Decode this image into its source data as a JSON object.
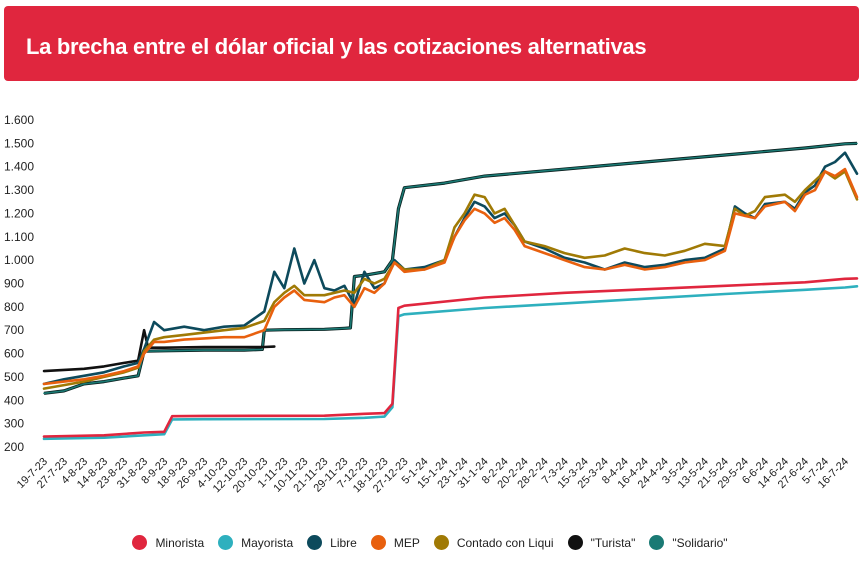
{
  "header": {
    "title": "La brecha entre el dólar oficial y las cotizaciones alternativas"
  },
  "chart_data": {
    "type": "line",
    "title": "La brecha entre el dólar oficial y las cotizaciones alternativas",
    "y_ticks": [
      "200",
      "300",
      "400",
      "500",
      "600",
      "700",
      "800",
      "900",
      "1.000",
      "1.100",
      "1.200",
      "1.300",
      "1.400",
      "1.500",
      "1.600"
    ],
    "ylim": [
      200,
      1600
    ],
    "x_ticks": [
      "19-7-23",
      "27-7-23",
      "4-8-23",
      "14-8-23",
      "23-8-23",
      "31-8-23",
      "8-9-23",
      "18-9-23",
      "26-9-23",
      "4-10-23",
      "12-10-23",
      "20-10-23",
      "1-11-23",
      "10-11-23",
      "21-11-23",
      "29-11-23",
      "7-12-23",
      "18-12-23",
      "27-12-23",
      "5-1-24",
      "15-1-24",
      "23-1-24",
      "31-1-24",
      "8-2-24",
      "20-2-24",
      "28-2-24",
      "7-3-24",
      "15-3-24",
      "25-3-24",
      "8-4-24",
      "16-4-24",
      "24-4-24",
      "3-5-24",
      "13-5-24",
      "21-5-24",
      "29-5-24",
      "6-6-24",
      "14-6-24",
      "27-6-24",
      "5-7-24",
      "16-7-24"
    ],
    "grid": false,
    "legend_position": "bottom",
    "series": [
      {
        "name": "Minorista",
        "color": "#e0263e",
        "points": [
          [
            0,
            245
          ],
          [
            3,
            250
          ],
          [
            5,
            262
          ],
          [
            6,
            265
          ],
          [
            6.4,
            332
          ],
          [
            8,
            333
          ],
          [
            14,
            334
          ],
          [
            16,
            342
          ],
          [
            17,
            345
          ],
          [
            17.4,
            385
          ],
          [
            17.7,
            795
          ],
          [
            18,
            805
          ],
          [
            22,
            840
          ],
          [
            26,
            860
          ],
          [
            30,
            875
          ],
          [
            34,
            890
          ],
          [
            38,
            905
          ],
          [
            40,
            920
          ],
          [
            40.6,
            922
          ]
        ]
      },
      {
        "name": "Mayorista",
        "color": "#2eb0be",
        "points": [
          [
            0,
            235
          ],
          [
            3,
            240
          ],
          [
            5,
            250
          ],
          [
            6,
            255
          ],
          [
            6.4,
            318
          ],
          [
            8,
            319
          ],
          [
            14,
            320
          ],
          [
            16,
            325
          ],
          [
            17,
            330
          ],
          [
            17.4,
            370
          ],
          [
            17.7,
            760
          ],
          [
            18,
            768
          ],
          [
            22,
            795
          ],
          [
            26,
            815
          ],
          [
            30,
            835
          ],
          [
            34,
            855
          ],
          [
            38,
            873
          ],
          [
            40,
            883
          ],
          [
            40.6,
            888
          ]
        ]
      },
      {
        "name": "Libre",
        "color": "#0d4a5c",
        "points": [
          [
            0,
            470
          ],
          [
            1,
            490
          ],
          [
            2,
            505
          ],
          [
            3,
            520
          ],
          [
            4,
            545
          ],
          [
            4.7,
            560
          ],
          [
            5,
            620
          ],
          [
            5.5,
            735
          ],
          [
            6,
            700
          ],
          [
            7,
            715
          ],
          [
            8,
            700
          ],
          [
            9,
            715
          ],
          [
            10,
            720
          ],
          [
            11,
            780
          ],
          [
            11.5,
            950
          ],
          [
            12,
            880
          ],
          [
            12.5,
            1050
          ],
          [
            13,
            900
          ],
          [
            13.5,
            1000
          ],
          [
            14,
            880
          ],
          [
            14.5,
            870
          ],
          [
            15,
            890
          ],
          [
            15.5,
            810
          ],
          [
            16,
            950
          ],
          [
            16.5,
            880
          ],
          [
            17,
            900
          ],
          [
            17.5,
            1000
          ],
          [
            18,
            960
          ],
          [
            19,
            970
          ],
          [
            20,
            1000
          ],
          [
            20.5,
            1100
          ],
          [
            21,
            1180
          ],
          [
            21.5,
            1250
          ],
          [
            22,
            1230
          ],
          [
            22.5,
            1180
          ],
          [
            23,
            1200
          ],
          [
            23.5,
            1150
          ],
          [
            24,
            1080
          ],
          [
            25,
            1050
          ],
          [
            26,
            1010
          ],
          [
            27,
            990
          ],
          [
            28,
            960
          ],
          [
            29,
            990
          ],
          [
            30,
            970
          ],
          [
            31,
            980
          ],
          [
            32,
            1000
          ],
          [
            33,
            1010
          ],
          [
            34,
            1050
          ],
          [
            34.5,
            1230
          ],
          [
            35,
            1200
          ],
          [
            35.5,
            1180
          ],
          [
            36,
            1240
          ],
          [
            37,
            1250
          ],
          [
            37.5,
            1220
          ],
          [
            38,
            1290
          ],
          [
            38.5,
            1320
          ],
          [
            39,
            1400
          ],
          [
            39.5,
            1420
          ],
          [
            40,
            1460
          ],
          [
            40.6,
            1370
          ]
        ]
      },
      {
        "name": "MEP",
        "color": "#e8600e",
        "points": [
          [
            0,
            470
          ],
          [
            1,
            480
          ],
          [
            2,
            490
          ],
          [
            3,
            505
          ],
          [
            4,
            525
          ],
          [
            4.7,
            545
          ],
          [
            5,
            600
          ],
          [
            5.5,
            650
          ],
          [
            6,
            650
          ],
          [
            7,
            660
          ],
          [
            8,
            665
          ],
          [
            9,
            670
          ],
          [
            10,
            670
          ],
          [
            11,
            700
          ],
          [
            11.5,
            800
          ],
          [
            12,
            840
          ],
          [
            12.5,
            870
          ],
          [
            13,
            830
          ],
          [
            14,
            820
          ],
          [
            14.5,
            840
          ],
          [
            15,
            850
          ],
          [
            15.5,
            800
          ],
          [
            16,
            880
          ],
          [
            16.5,
            860
          ],
          [
            17,
            900
          ],
          [
            17.5,
            990
          ],
          [
            18,
            950
          ],
          [
            19,
            960
          ],
          [
            20,
            990
          ],
          [
            20.5,
            1100
          ],
          [
            21,
            1170
          ],
          [
            21.5,
            1220
          ],
          [
            22,
            1200
          ],
          [
            22.5,
            1160
          ],
          [
            23,
            1180
          ],
          [
            23.5,
            1130
          ],
          [
            24,
            1060
          ],
          [
            25,
            1030
          ],
          [
            26,
            1000
          ],
          [
            27,
            970
          ],
          [
            28,
            960
          ],
          [
            29,
            980
          ],
          [
            30,
            960
          ],
          [
            31,
            970
          ],
          [
            32,
            990
          ],
          [
            33,
            1000
          ],
          [
            34,
            1040
          ],
          [
            34.5,
            1200
          ],
          [
            35,
            1190
          ],
          [
            35.5,
            1180
          ],
          [
            36,
            1230
          ],
          [
            37,
            1250
          ],
          [
            37.5,
            1210
          ],
          [
            38,
            1280
          ],
          [
            38.5,
            1300
          ],
          [
            39,
            1380
          ],
          [
            39.5,
            1360
          ],
          [
            40,
            1390
          ],
          [
            40.6,
            1270
          ]
        ]
      },
      {
        "name": "Contado con Liqui",
        "color": "#a07a05",
        "points": [
          [
            0,
            450
          ],
          [
            1,
            465
          ],
          [
            2,
            480
          ],
          [
            3,
            500
          ],
          [
            4,
            520
          ],
          [
            4.7,
            540
          ],
          [
            5,
            610
          ],
          [
            5.5,
            660
          ],
          [
            6,
            670
          ],
          [
            7,
            680
          ],
          [
            8,
            690
          ],
          [
            9,
            700
          ],
          [
            10,
            710
          ],
          [
            11,
            740
          ],
          [
            11.5,
            820
          ],
          [
            12,
            860
          ],
          [
            12.5,
            890
          ],
          [
            13,
            850
          ],
          [
            14,
            850
          ],
          [
            14.5,
            860
          ],
          [
            15,
            870
          ],
          [
            15.5,
            860
          ],
          [
            16,
            920
          ],
          [
            16.5,
            900
          ],
          [
            17,
            920
          ],
          [
            17.5,
            990
          ],
          [
            18,
            960
          ],
          [
            19,
            960
          ],
          [
            20,
            1000
          ],
          [
            20.5,
            1140
          ],
          [
            21,
            1200
          ],
          [
            21.5,
            1280
          ],
          [
            22,
            1270
          ],
          [
            22.5,
            1200
          ],
          [
            23,
            1220
          ],
          [
            23.5,
            1150
          ],
          [
            24,
            1080
          ],
          [
            25,
            1060
          ],
          [
            26,
            1030
          ],
          [
            27,
            1010
          ],
          [
            28,
            1020
          ],
          [
            29,
            1050
          ],
          [
            30,
            1030
          ],
          [
            31,
            1020
          ],
          [
            32,
            1040
          ],
          [
            33,
            1070
          ],
          [
            34,
            1060
          ],
          [
            34.5,
            1220
          ],
          [
            35,
            1190
          ],
          [
            35.5,
            1210
          ],
          [
            36,
            1270
          ],
          [
            37,
            1280
          ],
          [
            37.5,
            1250
          ],
          [
            38,
            1300
          ],
          [
            38.5,
            1340
          ],
          [
            39,
            1380
          ],
          [
            39.5,
            1350
          ],
          [
            40,
            1380
          ],
          [
            40.6,
            1260
          ]
        ]
      },
      {
        "name": "\"Turista\"",
        "color": "#111111",
        "points": [
          [
            0,
            525
          ],
          [
            2,
            535
          ],
          [
            3,
            545
          ],
          [
            4,
            560
          ],
          [
            4.7,
            570
          ],
          [
            5,
            700
          ],
          [
            5.2,
            625
          ],
          [
            6,
            625
          ],
          [
            8,
            628
          ],
          [
            10,
            628
          ],
          [
            11,
            628
          ],
          [
            11.5,
            630
          ]
        ]
      },
      {
        "name": "\"Solidario\"",
        "color": "#1a7a74",
        "points": [
          [
            0,
            430
          ],
          [
            1,
            440
          ],
          [
            2,
            470
          ],
          [
            3,
            480
          ],
          [
            4,
            495
          ],
          [
            4.7,
            505
          ],
          [
            5,
            610
          ],
          [
            6,
            612
          ],
          [
            8,
            615
          ],
          [
            10,
            615
          ],
          [
            10.9,
            618
          ],
          [
            11,
            700
          ],
          [
            12,
            702
          ],
          [
            14,
            704
          ],
          [
            15,
            708
          ],
          [
            15.3,
            710
          ],
          [
            15.5,
            930
          ],
          [
            16,
            935
          ],
          [
            17,
            950
          ],
          [
            17.4,
            1000
          ],
          [
            17.7,
            1220
          ],
          [
            18,
            1310
          ],
          [
            20,
            1330
          ],
          [
            22,
            1360
          ],
          [
            26,
            1390
          ],
          [
            30,
            1420
          ],
          [
            34,
            1450
          ],
          [
            38,
            1480
          ],
          [
            40,
            1498
          ],
          [
            40.6,
            1500
          ]
        ]
      }
    ]
  },
  "legend": {
    "items": [
      {
        "label": "Minorista",
        "color": "#e0263e"
      },
      {
        "label": "Mayorista",
        "color": "#2eb0be"
      },
      {
        "label": "Libre",
        "color": "#0d4a5c"
      },
      {
        "label": "MEP",
        "color": "#e8600e"
      },
      {
        "label": "Contado con Liqui",
        "color": "#a07a05"
      },
      {
        "label": "\"Turista\"",
        "color": "#111111"
      },
      {
        "label": "\"Solidario\"",
        "color": "#1a7a74"
      }
    ]
  }
}
